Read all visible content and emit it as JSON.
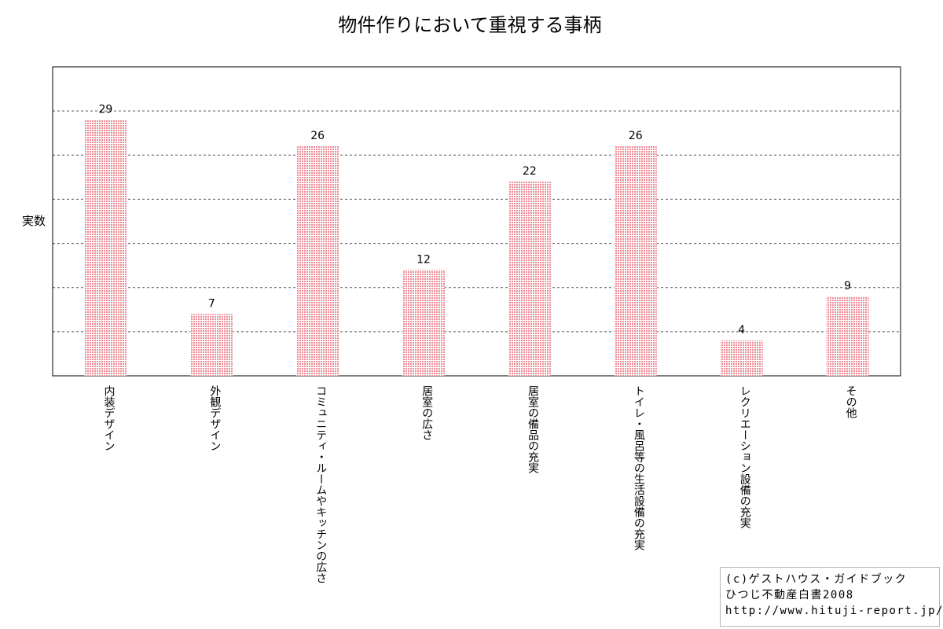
{
  "chart_data": {
    "type": "bar",
    "title": "物件作りにおいて重視する事柄",
    "ylabel": "実数",
    "xlabel": "",
    "categories": [
      "内装デザイン",
      "外観デザイン",
      "コミュニティ・ルームやキッチンの広さ",
      "居室の広さ",
      "居室の備品の充実",
      "トイレ・風呂等の生活設備の充実",
      "レクリエーション設備の充実",
      "その他"
    ],
    "values": [
      29,
      7,
      26,
      12,
      22,
      26,
      4,
      9
    ],
    "ylim": [
      0,
      35
    ],
    "grid": true,
    "grid_style": "dashed",
    "bar_color": "#f0a0a8",
    "bar_fill": "dotted"
  },
  "credit": {
    "line1": "(c)ゲストハウス・ガイドブック",
    "line2": "ひつじ不動産白書2008",
    "line3": "http://www.hituji-report.jp/"
  }
}
